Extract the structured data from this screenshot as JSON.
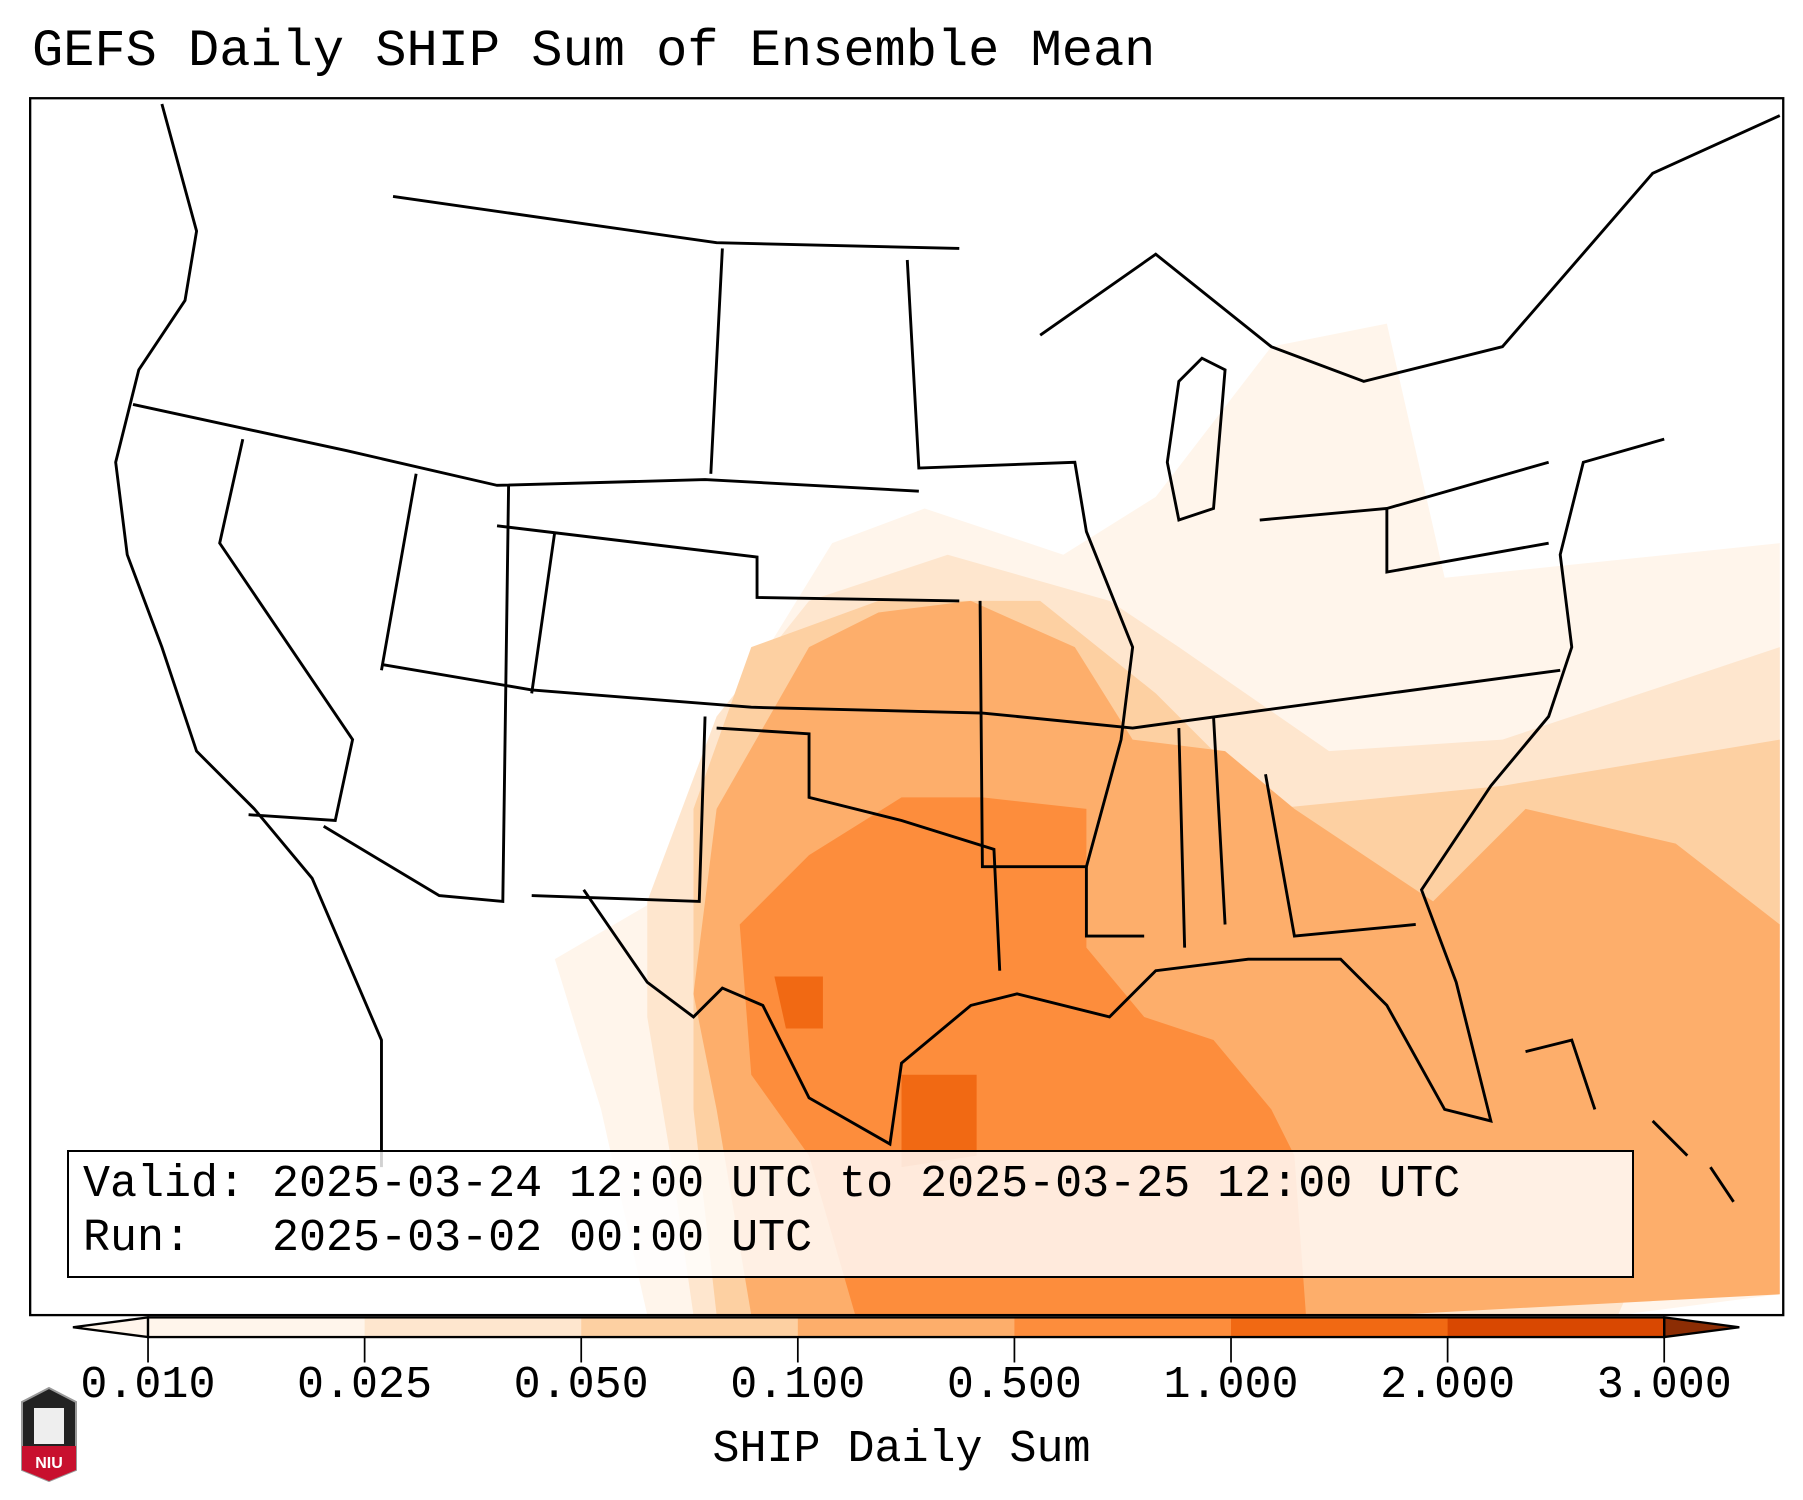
{
  "title": "GEFS Daily SHIP Sum of Ensemble Mean",
  "info": {
    "valid_label": "Valid:",
    "valid_value": "2025-03-24 12:00 UTC to 2025-03-25 12:00 UTC",
    "run_label": "Run:",
    "run_value": "2025-03-02 00:00 UTC"
  },
  "logo_text": "NIU",
  "chart_data": {
    "type": "heatmap",
    "title": "GEFS Daily SHIP Sum of Ensemble Mean",
    "colorbar": {
      "label": "SHIP Daily Sum",
      "ticks": [
        "0.010",
        "0.025",
        "0.050",
        "0.100",
        "0.500",
        "1.000",
        "2.000",
        "3.000"
      ],
      "colors": [
        "#fff5eb",
        "#fee6ce",
        "#fdd0a2",
        "#fdae6b",
        "#fd8d3c",
        "#f16913",
        "#d94801",
        "#8c2d04"
      ],
      "extend": "both"
    },
    "regions": [
      {
        "name": "Central/Southern Plains & Mid-Mississippi Valley",
        "level": "0.100-0.500"
      },
      {
        "name": "Texas, Louisiana, NW Gulf of Mexico",
        "level": "0.500-1.000"
      },
      {
        "name": "South Texas / Western Gulf spots",
        "level": "1.000-2.000"
      },
      {
        "name": "Southeast US & Western Atlantic",
        "level": "0.025-0.500"
      },
      {
        "name": "Ohio Valley / Great Lakes / Mid-Atlantic",
        "level": "0.010-0.050"
      }
    ]
  }
}
